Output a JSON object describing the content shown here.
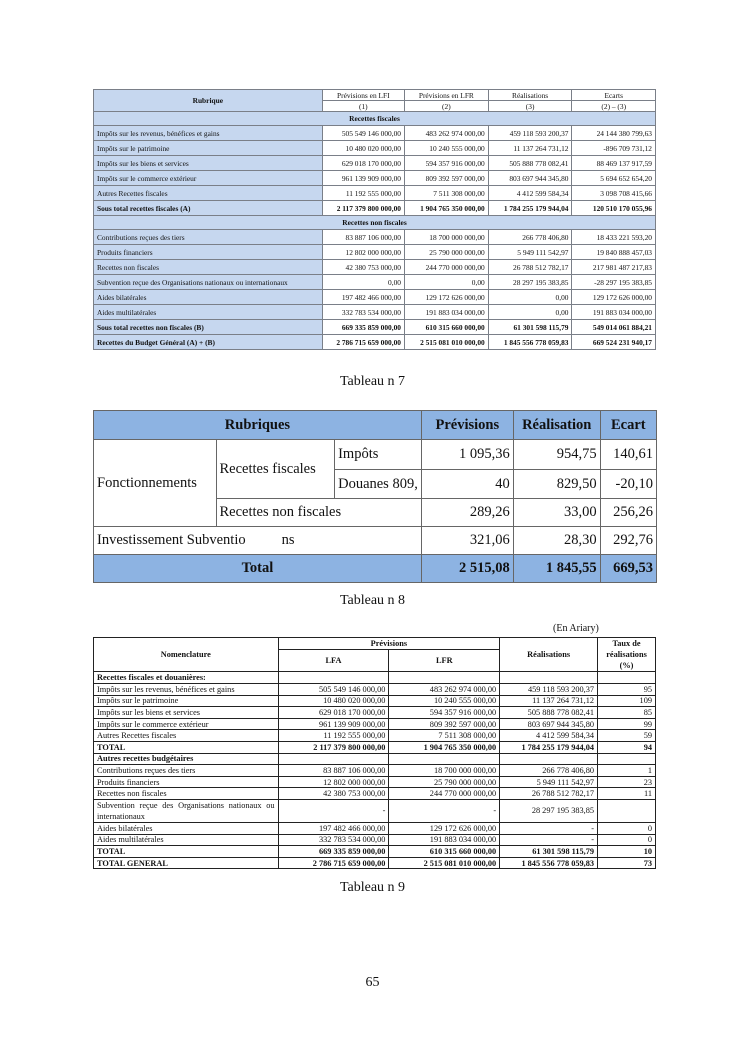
{
  "table7": {
    "header": {
      "rubrique": "Rubrique",
      "cols": [
        [
          "Prévisions en LFI",
          "(1)"
        ],
        [
          "Prévisions en LFR",
          "(2)"
        ],
        [
          "Réalisations",
          "(3)"
        ],
        [
          "Ecarts",
          "(2) – (3)"
        ]
      ]
    },
    "sections": [
      {
        "title": "Recettes fiscales",
        "rows": [
          [
            "Impôts sur les revenus, bénéfices et gains",
            "505 549 146 000,00",
            "483 262 974 000,00",
            "459 118 593 200,37",
            "24 144 380 799,63"
          ],
          [
            "Impôts sur le patrimoine",
            "10 480 020 000,00",
            "10 240 555 000,00",
            "11 137 264 731,12",
            "-896 709 731,12"
          ],
          [
            "Impôts sur les biens et services",
            "629 018 170 000,00",
            "594 357 916 000,00",
            "505 888 778 082,41",
            "88 469 137 917,59"
          ],
          [
            "Impôts sur le commerce extérieur",
            "961 139 909 000,00",
            "809 392 597 000,00",
            "803 697 944 345,80",
            "5 694 652 654,20"
          ],
          [
            "Autres Recettes fiscales",
            "11 192 555 000,00",
            "7 511 308 000,00",
            "4 412 599 584,34",
            "3 098 708 415,66"
          ]
        ],
        "totals": [
          [
            "Sous total recettes fiscales (A)",
            "2 117 379 800 000,00",
            "1 904 765 350 000,00",
            "1 784 255 179 944,04",
            "120 510 170 055,96"
          ]
        ]
      },
      {
        "title": "Recettes non fiscales",
        "rows": [
          [
            "Contributions reçues des tiers",
            "83 887 106 000,00",
            "18 700 000 000,00",
            "266 778 406,80",
            "18 433 221 593,20"
          ],
          [
            "Produits financiers",
            "12 802 000 000,00",
            "25 790 000 000,00",
            "5 949 111 542,97",
            "19 840 888 457,03"
          ],
          [
            "Recettes non fiscales",
            "42 380 753 000,00",
            "244 770 000 000,00",
            "26 788 512 782,17",
            "217 981 487 217,83"
          ],
          [
            "Subvention reçue des Organisations nationaux ou internationaux",
            "0,00",
            "0,00",
            "28 297 195 383,85",
            "-28 297 195 383,85"
          ],
          [
            "Aides bilatérales",
            "197 482 466 000,00",
            "129 172 626 000,00",
            "0,00",
            "129 172 626 000,00"
          ],
          [
            "Aides multilatérales",
            "332 783 534 000,00",
            "191 883 034 000,00",
            "0,00",
            "191 883 034 000,00"
          ]
        ],
        "totals": [
          [
            "Sous total recettes non fiscales (B)",
            "669 335 859 000,00",
            "610 315 660 000,00",
            "61 301 598 115,79",
            "549 014 061 884,21"
          ],
          [
            "Recettes du Budget Général (A) + (B)",
            "2 786 715 659 000,00",
            "2 515 081 010 000,00",
            "1 845 556 778 059,83",
            "669 524 231 940,17"
          ]
        ]
      }
    ],
    "caption": "Tableau n 7"
  },
  "table8": {
    "header": {
      "rubriques": "Rubriques",
      "previsions": "Prévisions",
      "realisation": "Réalisation",
      "ecart": "Ecart"
    },
    "fonctionnements": "Fonctionnements",
    "recettes_fiscales": "Recettes fiscales",
    "impots": {
      "label": "Impôts",
      "prev": "1 095,36",
      "real": "954,75",
      "ecart": "140,61"
    },
    "douanes": {
      "label": "Douanes 809,",
      "prev": "40",
      "real": "829,50",
      "ecart": "-20,10"
    },
    "non_fiscales": {
      "label": "Recettes non fiscales",
      "prev": "289,26",
      "real": "33,00",
      "ecart": "256,26"
    },
    "investissement": {
      "label": "Investissement Subventio",
      "label2": "ns",
      "prev": "321,06",
      "real": "28,30",
      "ecart": "292,76"
    },
    "total": {
      "label": "Total",
      "prev": "2 515,08",
      "real": "1 845,55",
      "ecart": "669,53"
    },
    "colors": {
      "header_fill": "#8db3e2"
    },
    "caption": "Tableau n 8"
  },
  "table9": {
    "unit": "(En Ariary)",
    "header": {
      "nomenclature": "Nomenclature",
      "previsions": "Prévisions",
      "lfa": "LFA",
      "lfr": "LFR",
      "realisations": "Réalisations",
      "taux": "Taux de réalisations (%)"
    },
    "rows": [
      {
        "bold": true,
        "cells": [
          "Recettes fiscales et douanières:",
          "",
          "",
          "",
          ""
        ]
      },
      {
        "cells": [
          "Impôts sur les revenus, bénéfices et gains",
          "505 549 146 000,00",
          "483 262 974 000,00",
          "459 118 593 200,37",
          "95"
        ]
      },
      {
        "cells": [
          "Impôts sur le patrimoine",
          "10 480 020 000,00",
          "10 240 555 000,00",
          "11 137 264 731,12",
          "109"
        ]
      },
      {
        "cells": [
          "Impôts sur les biens et services",
          "629 018 170 000,00",
          "594 357 916 000,00",
          "505 888 778 082,41",
          "85"
        ]
      },
      {
        "cells": [
          "Impôts sur le commerce extérieur",
          "961 139 909 000,00",
          "809 392 597 000,00",
          "803 697 944 345,80",
          "99"
        ]
      },
      {
        "cells": [
          "Autres Recettes fiscales",
          "11 192 555 000,00",
          "7 511 308 000,00",
          "4 412 599 584,34",
          "59"
        ]
      },
      {
        "bold": true,
        "cells": [
          "TOTAL",
          "2 117 379 800 000,00",
          "1 904 765 350 000,00",
          "1 784 255 179 944,04",
          "94"
        ]
      },
      {
        "bold": true,
        "cells": [
          "Autres recettes budgétaires",
          "",
          "",
          "",
          ""
        ]
      },
      {
        "cells": [
          "Contributions reçues des tiers",
          "83 887 106 000,00",
          "18 700 000 000,00",
          "266 778 406,80",
          "1"
        ]
      },
      {
        "cells": [
          "Produits financiers",
          "12 802 000 000,00",
          "25 790 000 000,00",
          "5 949 111 542,97",
          "23"
        ]
      },
      {
        "cells": [
          "Recettes non fiscales",
          "42 380 753 000,00",
          "244 770 000 000,00",
          "26 788 512 782,17",
          "11"
        ]
      },
      {
        "cells": [
          "Subvention reçue des Organisations nationaux ou internationaux",
          "-",
          "-",
          "28 297 195 383,85",
          ""
        ]
      },
      {
        "cells": [
          "Aides bilatérales",
          "197 482 466 000,00",
          "129 172 626 000,00",
          "-",
          "0"
        ]
      },
      {
        "cells": [
          "Aides multilatérales",
          "332 783 534 000,00",
          "191 883 034 000,00",
          "-",
          "0"
        ]
      },
      {
        "bold": true,
        "cells": [
          "TOTAL",
          "669 335 859 000,00",
          "610 315 660 000,00",
          "61 301 598 115,79",
          "10"
        ]
      },
      {
        "bold": true,
        "cells": [
          "TOTAL GENERAL",
          "2 786 715 659 000,00",
          "2 515 081 010 000,00",
          "1 845 556 778 059,83",
          "73"
        ]
      }
    ],
    "caption": "Tableau n 9"
  },
  "page_number": "65",
  "colors": {
    "label_fill": "#c6d7ef"
  }
}
